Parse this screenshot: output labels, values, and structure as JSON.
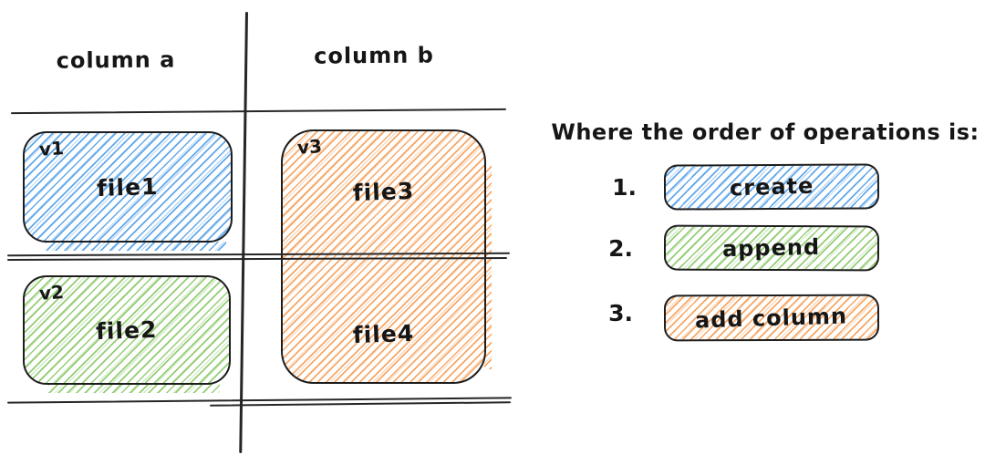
{
  "colors": {
    "blue": "#55a1e8",
    "green": "#8bc96a",
    "orange": "#f5a05a",
    "stroke": "#1d1d1e",
    "text": "#161616",
    "background": "#ffffff"
  },
  "table": {
    "column_headers": [
      "column a",
      "column b"
    ],
    "boxes": {
      "v1": {
        "version": "v1",
        "file": "file1",
        "color_name": "blue"
      },
      "v2": {
        "version": "v2",
        "file": "file2",
        "color_name": "green"
      },
      "v3": {
        "version": "v3",
        "files": [
          "file3",
          "file4"
        ],
        "color_name": "orange"
      }
    }
  },
  "operations": {
    "title": "Where the order of operations is:",
    "items": [
      {
        "number": "1.",
        "label": "create",
        "color_name": "blue"
      },
      {
        "number": "2.",
        "label": "append",
        "color_name": "green"
      },
      {
        "number": "3.",
        "label": "add column",
        "color_name": "orange"
      }
    ]
  }
}
